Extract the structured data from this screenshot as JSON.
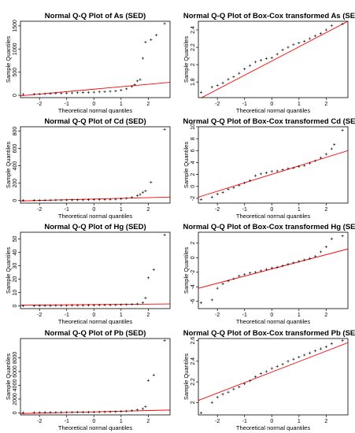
{
  "chart_data": [
    {
      "type": "scatter",
      "title": "Normal Q-Q Plot of As (SED)",
      "xlabel": "Theoretical normal quantiles",
      "ylabel": "Sample Quantiles",
      "xlim": [
        -2.7,
        2.8
      ],
      "ylim": [
        -50,
        1600
      ],
      "xticks": [
        -2,
        -1,
        0,
        1,
        2
      ],
      "yticks": [
        0,
        500,
        1000,
        1500
      ],
      "points": [
        [
          -2.6,
          20
        ],
        [
          -2.2,
          25
        ],
        [
          -2.0,
          28
        ],
        [
          -1.8,
          32
        ],
        [
          -1.6,
          36
        ],
        [
          -1.4,
          40
        ],
        [
          -1.2,
          44
        ],
        [
          -1.0,
          48
        ],
        [
          -0.8,
          52
        ],
        [
          -0.6,
          56
        ],
        [
          -0.4,
          60
        ],
        [
          -0.2,
          64
        ],
        [
          0.0,
          68
        ],
        [
          0.2,
          73
        ],
        [
          0.4,
          79
        ],
        [
          0.6,
          86
        ],
        [
          0.8,
          95
        ],
        [
          1.0,
          110
        ],
        [
          1.2,
          140
        ],
        [
          1.4,
          190
        ],
        [
          1.5,
          230
        ],
        [
          1.6,
          310
        ],
        [
          1.7,
          340
        ],
        [
          1.8,
          800
        ],
        [
          1.9,
          1150
        ],
        [
          2.1,
          1200
        ],
        [
          2.3,
          1300
        ],
        [
          2.6,
          1550
        ]
      ],
      "reference_line": [
        [
          -2.7,
          -10
        ],
        [
          2.8,
          280
        ]
      ]
    },
    {
      "type": "scatter",
      "title": "Normal Q-Q Plot of Box-Cox transformed As (SED)",
      "xlabel": "Theoretical normal quantiles",
      "ylabel": "Sample Quantiles",
      "xlim": [
        -2.7,
        2.8
      ],
      "ylim": [
        1.62,
        2.5
      ],
      "xticks": [
        -2,
        -1,
        0,
        1,
        2
      ],
      "yticks": [
        1.8,
        2.0,
        2.2,
        2.4
      ],
      "points": [
        [
          -2.6,
          1.68
        ],
        [
          -2.2,
          1.74
        ],
        [
          -2.0,
          1.76
        ],
        [
          -1.8,
          1.79
        ],
        [
          -1.6,
          1.83
        ],
        [
          -1.4,
          1.86
        ],
        [
          -1.2,
          1.9
        ],
        [
          -1.0,
          1.95
        ],
        [
          -0.8,
          1.99
        ],
        [
          -0.6,
          2.03
        ],
        [
          -0.4,
          2.05
        ],
        [
          -0.2,
          2.07
        ],
        [
          0.0,
          2.08
        ],
        [
          0.2,
          2.12
        ],
        [
          0.4,
          2.17
        ],
        [
          0.6,
          2.2
        ],
        [
          0.8,
          2.23
        ],
        [
          1.0,
          2.25
        ],
        [
          1.2,
          2.27
        ],
        [
          1.4,
          2.3
        ],
        [
          1.6,
          2.33
        ],
        [
          1.8,
          2.36
        ],
        [
          2.0,
          2.4
        ],
        [
          2.2,
          2.45
        ],
        [
          2.6,
          2.47
        ]
      ],
      "reference_line": [
        [
          -2.7,
          1.6
        ],
        [
          2.8,
          2.5
        ]
      ]
    },
    {
      "type": "scatter",
      "title": "Normal Q-Q Plot of Cd (SED)",
      "xlabel": "Theoretical normal quantiles",
      "ylabel": "Sample Quantiles",
      "xlim": [
        -2.7,
        2.8
      ],
      "ylim": [
        -30,
        850
      ],
      "xticks": [
        -2,
        -1,
        0,
        1,
        2
      ],
      "yticks": [
        0,
        200,
        400,
        600,
        800
      ],
      "points": [
        [
          -2.6,
          2
        ],
        [
          -2.2,
          3
        ],
        [
          -2.0,
          3
        ],
        [
          -1.8,
          4
        ],
        [
          -1.6,
          4
        ],
        [
          -1.4,
          5
        ],
        [
          -1.2,
          5
        ],
        [
          -1.0,
          6
        ],
        [
          -0.8,
          6
        ],
        [
          -0.6,
          7
        ],
        [
          -0.4,
          7
        ],
        [
          -0.2,
          8
        ],
        [
          0.0,
          9
        ],
        [
          0.2,
          10
        ],
        [
          0.4,
          11
        ],
        [
          0.6,
          13
        ],
        [
          0.8,
          15
        ],
        [
          1.0,
          19
        ],
        [
          1.2,
          25
        ],
        [
          1.4,
          35
        ],
        [
          1.6,
          55
        ],
        [
          1.7,
          70
        ],
        [
          1.8,
          95
        ],
        [
          1.9,
          110
        ],
        [
          2.1,
          210
        ],
        [
          2.6,
          820
        ]
      ],
      "reference_line": [
        [
          -2.7,
          -5
        ],
        [
          2.8,
          40
        ]
      ]
    },
    {
      "type": "scatter",
      "title": "Normal Q-Q Plot of Box-Cox transformed Cd (SED)",
      "xlabel": "Theoretical normal quantiles",
      "ylabel": "Sample Quantiles",
      "xlim": [
        -2.7,
        2.8
      ],
      "ylim": [
        -2.8,
        10
      ],
      "xticks": [
        -2,
        -1,
        0,
        1,
        2
      ],
      "yticks": [
        -2,
        0,
        2,
        4,
        6,
        8,
        10
      ],
      "points": [
        [
          -2.6,
          -2.2
        ],
        [
          -2.2,
          -1.8
        ],
        [
          -2.0,
          -1.3
        ],
        [
          -1.8,
          -1.0
        ],
        [
          -1.6,
          -0.5
        ],
        [
          -1.4,
          -0.2
        ],
        [
          -1.2,
          0.2
        ],
        [
          -1.0,
          0.6
        ],
        [
          -0.8,
          1.0
        ],
        [
          -0.6,
          1.8
        ],
        [
          -0.4,
          2.1
        ],
        [
          -0.2,
          2.3
        ],
        [
          0.0,
          2.5
        ],
        [
          0.2,
          2.6
        ],
        [
          0.4,
          2.8
        ],
        [
          0.6,
          3.0
        ],
        [
          0.8,
          3.1
        ],
        [
          1.0,
          3.3
        ],
        [
          1.2,
          3.5
        ],
        [
          1.4,
          3.9
        ],
        [
          1.6,
          4.3
        ],
        [
          1.8,
          4.8
        ],
        [
          2.0,
          5.4
        ],
        [
          2.2,
          6.3
        ],
        [
          2.3,
          7.0
        ],
        [
          2.6,
          9.4
        ]
      ],
      "reference_line": [
        [
          -2.7,
          -1.8
        ],
        [
          2.8,
          6.0
        ]
      ]
    },
    {
      "type": "scatter",
      "title": "Normal Q-Q Plot of Hg (SED)",
      "xlabel": "Theoretical normal quantiles",
      "ylabel": "Sample Quantiles",
      "xlim": [
        -2.7,
        2.8
      ],
      "ylim": [
        -2,
        55
      ],
      "xticks": [
        -2,
        -1,
        0,
        1,
        2
      ],
      "yticks": [
        0,
        10,
        20,
        30,
        40,
        50
      ],
      "points": [
        [
          -2.6,
          0.1
        ],
        [
          -2.2,
          0.1
        ],
        [
          -2.0,
          0.2
        ],
        [
          -1.8,
          0.2
        ],
        [
          -1.6,
          0.2
        ],
        [
          -1.4,
          0.3
        ],
        [
          -1.2,
          0.3
        ],
        [
          -1.0,
          0.3
        ],
        [
          -0.8,
          0.4
        ],
        [
          -0.6,
          0.4
        ],
        [
          -0.4,
          0.4
        ],
        [
          -0.2,
          0.5
        ],
        [
          0.0,
          0.5
        ],
        [
          0.2,
          0.6
        ],
        [
          0.4,
          0.6
        ],
        [
          0.6,
          0.7
        ],
        [
          0.8,
          0.8
        ],
        [
          1.0,
          0.9
        ],
        [
          1.2,
          1.0
        ],
        [
          1.4,
          1.2
        ],
        [
          1.6,
          1.5
        ],
        [
          1.8,
          2.5
        ],
        [
          1.9,
          6
        ],
        [
          2.0,
          21
        ],
        [
          2.2,
          27
        ],
        [
          2.6,
          53
        ]
      ],
      "reference_line": [
        [
          -2.7,
          0.5
        ],
        [
          2.8,
          1.5
        ]
      ]
    },
    {
      "type": "scatter",
      "title": "Normal Q-Q Plot of Box-Cox transformed Hg (SED)",
      "xlabel": "Theoretical normal quantiles",
      "ylabel": "Sample Quantiles",
      "xlim": [
        -2.7,
        2.8
      ],
      "ylim": [
        -7,
        3.5
      ],
      "xticks": [
        -2,
        -1,
        0,
        1,
        2
      ],
      "yticks": [
        -6,
        -4,
        -2,
        0,
        2
      ],
      "points": [
        [
          -2.6,
          -6.2
        ],
        [
          -2.2,
          -5.8
        ],
        [
          -2.0,
          -4.2
        ],
        [
          -1.8,
          -3.6
        ],
        [
          -1.6,
          -3.2
        ],
        [
          -1.4,
          -2.9
        ],
        [
          -1.2,
          -2.5
        ],
        [
          -1.0,
          -2.3
        ],
        [
          -0.8,
          -2.1
        ],
        [
          -0.6,
          -2.0
        ],
        [
          -0.4,
          -1.8
        ],
        [
          -0.2,
          -1.6
        ],
        [
          0.0,
          -1.4
        ],
        [
          0.2,
          -1.3
        ],
        [
          0.4,
          -1.1
        ],
        [
          0.6,
          -0.9
        ],
        [
          0.8,
          -0.7
        ],
        [
          1.0,
          -0.5
        ],
        [
          1.2,
          -0.3
        ],
        [
          1.4,
          -0.1
        ],
        [
          1.6,
          0.2
        ],
        [
          1.8,
          0.8
        ],
        [
          2.0,
          1.5
        ],
        [
          2.2,
          2.6
        ],
        [
          2.6,
          3.0
        ]
      ],
      "reference_line": [
        [
          -2.7,
          -4.2
        ],
        [
          2.8,
          1.2
        ]
      ]
    },
    {
      "type": "scatter",
      "title": "Normal Q-Q Plot of Pb (SED)",
      "xlabel": "Theoretical normal quantiles",
      "ylabel": "Sample Quantiles",
      "xlim": [
        -2.7,
        2.8
      ],
      "ylim": [
        -300,
        10800
      ],
      "xticks": [
        -2,
        -1,
        0,
        1,
        2
      ],
      "yticks": [
        0,
        2000,
        4000,
        6000,
        8000
      ],
      "points": [
        [
          -2.6,
          30
        ],
        [
          -2.2,
          40
        ],
        [
          -2.0,
          50
        ],
        [
          -1.8,
          55
        ],
        [
          -1.6,
          60
        ],
        [
          -1.4,
          65
        ],
        [
          -1.2,
          70
        ],
        [
          -1.0,
          75
        ],
        [
          -0.8,
          80
        ],
        [
          -0.6,
          90
        ],
        [
          -0.4,
          95
        ],
        [
          -0.2,
          100
        ],
        [
          0.0,
          110
        ],
        [
          0.2,
          120
        ],
        [
          0.4,
          135
        ],
        [
          0.6,
          150
        ],
        [
          0.8,
          170
        ],
        [
          1.0,
          200
        ],
        [
          1.2,
          250
        ],
        [
          1.4,
          320
        ],
        [
          1.6,
          420
        ],
        [
          1.8,
          600
        ],
        [
          1.9,
          900
        ],
        [
          2.0,
          4700
        ],
        [
          2.2,
          5500
        ],
        [
          2.6,
          10500
        ]
      ],
      "reference_line": [
        [
          -2.7,
          -100
        ],
        [
          2.8,
          400
        ]
      ]
    },
    {
      "type": "scatter",
      "title": "Normal Q-Q Plot of Box-Cox transformed Pb (SED)",
      "xlabel": "Theoretical normal quantiles",
      "ylabel": "Sample Quantiles",
      "xlim": [
        -2.7,
        2.8
      ],
      "ylim": [
        1.88,
        2.62
      ],
      "xticks": [
        -2,
        -1,
        0,
        1,
        2
      ],
      "yticks": [
        2.0,
        2.2,
        2.4,
        2.6
      ],
      "points": [
        [
          -2.6,
          1.9
        ],
        [
          -2.2,
          2.0
        ],
        [
          -2.0,
          2.05
        ],
        [
          -1.8,
          2.08
        ],
        [
          -1.6,
          2.1
        ],
        [
          -1.4,
          2.13
        ],
        [
          -1.2,
          2.15
        ],
        [
          -1.0,
          2.18
        ],
        [
          -0.8,
          2.21
        ],
        [
          -0.6,
          2.25
        ],
        [
          -0.4,
          2.28
        ],
        [
          -0.2,
          2.3
        ],
        [
          0.0,
          2.33
        ],
        [
          0.2,
          2.35
        ],
        [
          0.4,
          2.37
        ],
        [
          0.6,
          2.4
        ],
        [
          0.8,
          2.42
        ],
        [
          1.0,
          2.44
        ],
        [
          1.2,
          2.46
        ],
        [
          1.4,
          2.48
        ],
        [
          1.6,
          2.5
        ],
        [
          1.8,
          2.52
        ],
        [
          2.0,
          2.54
        ],
        [
          2.2,
          2.57
        ],
        [
          2.6,
          2.6
        ]
      ],
      "reference_line": [
        [
          -2.7,
          2.02
        ],
        [
          2.8,
          2.58
        ]
      ]
    }
  ]
}
